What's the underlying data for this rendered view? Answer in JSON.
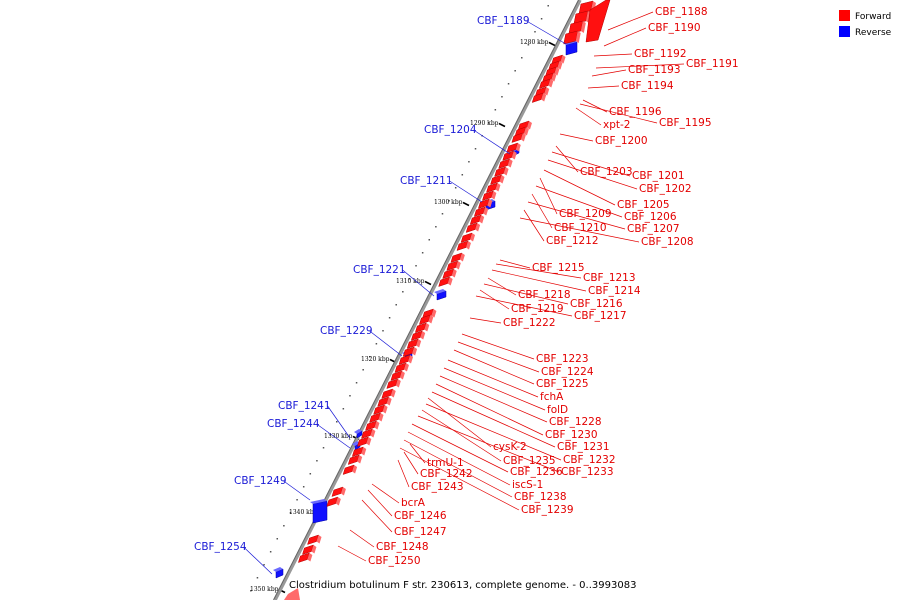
{
  "title": "Clostridium botulinum F str. 230613, complete genome. - 0..3993083",
  "legend": [
    {
      "label": "Forward",
      "color": "#ff0000"
    },
    {
      "label": "Reverse",
      "color": "#0000ff"
    }
  ],
  "colors": {
    "forward": "#ff0000",
    "forward_line": "#e30000",
    "reverse": "#0000ff",
    "reverse_line": "#1a1ad6",
    "backbone": "#888888"
  },
  "ticks": [
    {
      "label": "1280 kbp"
    },
    {
      "label": "1290 kbp"
    },
    {
      "label": "1300 kbp"
    },
    {
      "label": "1310 kbp"
    },
    {
      "label": "1320 kbp"
    },
    {
      "label": "1330 kbp"
    },
    {
      "label": "1340 kbp"
    },
    {
      "label": "1350 kbp"
    }
  ],
  "forward_labels": [
    "CBF_1188",
    "CBF_1190",
    "CBF_1192",
    "CBF_1191",
    "CBF_1193",
    "CBF_1194",
    "CBF_1196",
    "CBF_1195",
    "xpt-2",
    "CBF_1200",
    "CBF_1203",
    "CBF_1201",
    "CBF_1202",
    "CBF_1205",
    "CBF_1209",
    "CBF_1206",
    "CBF_1210",
    "CBF_1207",
    "CBF_1212",
    "CBF_1208",
    "CBF_1215",
    "CBF_1213",
    "CBF_1214",
    "CBF_1218",
    "CBF_1216",
    "CBF_1219",
    "CBF_1217",
    "CBF_1222",
    "CBF_1223",
    "CBF_1224",
    "CBF_1225",
    "fchA",
    "folD",
    "CBF_1228",
    "CBF_1230",
    "CBF_1231",
    "cysK-2",
    "CBF_1232",
    "CBF_1235",
    "CBF_1233",
    "trmU-1",
    "CBF_1236",
    "CBF_1242",
    "iscS-1",
    "CBF_1243",
    "CBF_1238",
    "bcrA",
    "CBF_1239",
    "CBF_1246",
    "CBF_1247",
    "CBF_1248",
    "CBF_1250"
  ],
  "reverse_labels": [
    "CBF_1189",
    "CBF_1204",
    "CBF_1211",
    "CBF_1221",
    "CBF_1229",
    "CBF_1241",
    "CBF_1244",
    "CBF_1249",
    "CBF_1254"
  ]
}
